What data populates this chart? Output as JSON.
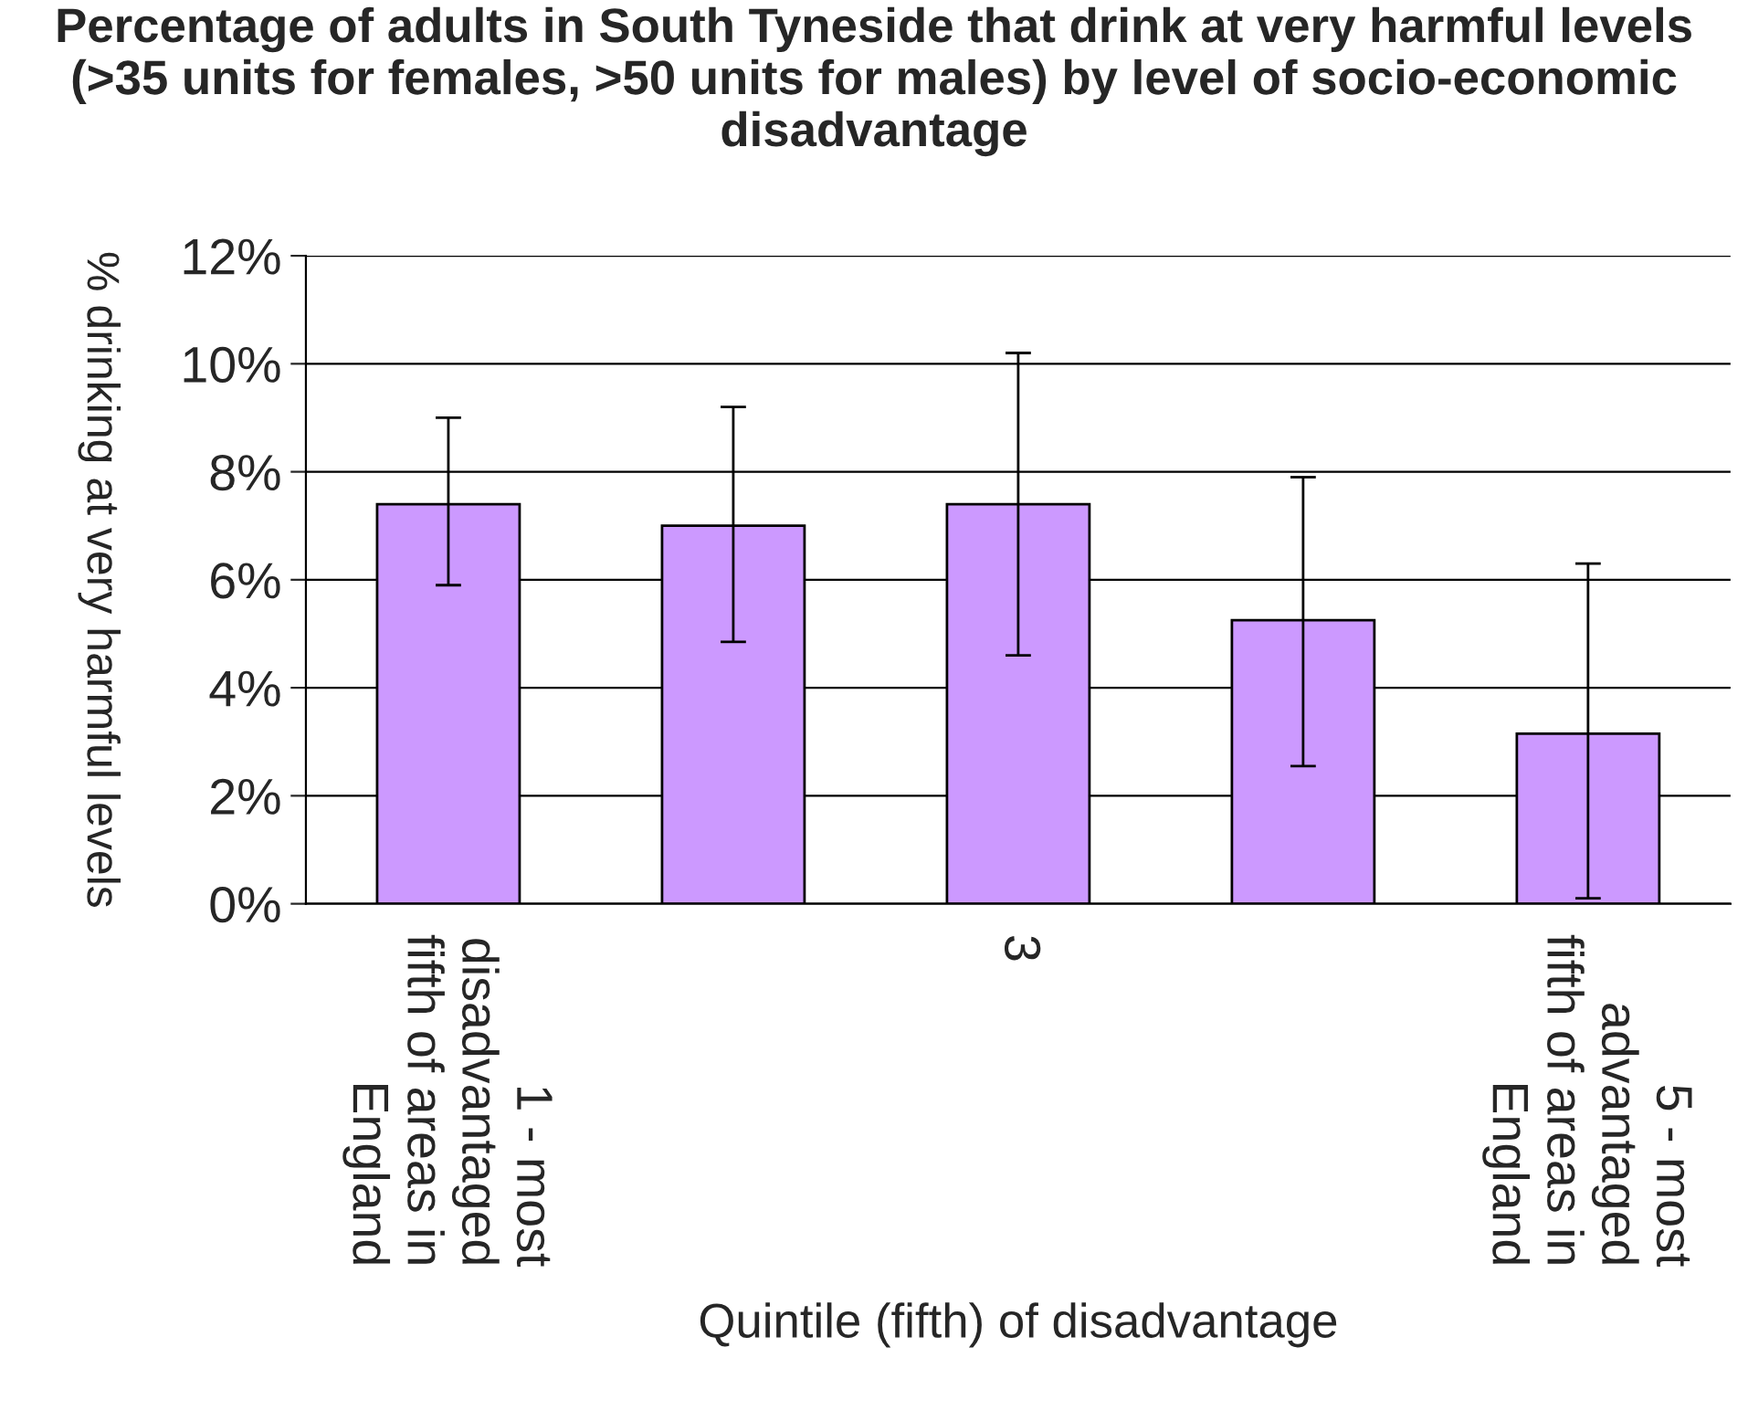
{
  "chart_data": {
    "type": "bar",
    "title": "Percentage of adults in South Tyneside that drink at very harmful levels (>35 units for females, >50 units for males) by level of socio-economic disadvantage",
    "xlabel": "Quintile (fifth) of disadvantage",
    "ylabel": "% drinking at very harmful levels",
    "categories": [
      "1 - most\ndisadvantaged\nfifth of areas in\nEngland",
      null,
      "3",
      null,
      "5 - most\nadvantaged\nfifth of areas in\nEngland"
    ],
    "values": [
      7.4,
      7.0,
      7.4,
      5.25,
      3.15
    ],
    "errors": [
      [
        5.9,
        9.0
      ],
      [
        4.85,
        9.2
      ],
      [
        4.6,
        10.2
      ],
      [
        2.55,
        7.9
      ],
      [
        0.1,
        6.3
      ]
    ],
    "color": "#cc99ff",
    "ylim": [
      0,
      12
    ],
    "yticks": [
      {
        "value": 0,
        "label": "0%"
      },
      {
        "value": 2,
        "label": "2%"
      },
      {
        "value": 4,
        "label": "4%"
      },
      {
        "value": 6,
        "label": "6%"
      },
      {
        "value": 8,
        "label": "8%"
      },
      {
        "value": 10,
        "label": "10%"
      },
      {
        "value": 12,
        "label": "12%"
      }
    ],
    "grid": "y"
  }
}
